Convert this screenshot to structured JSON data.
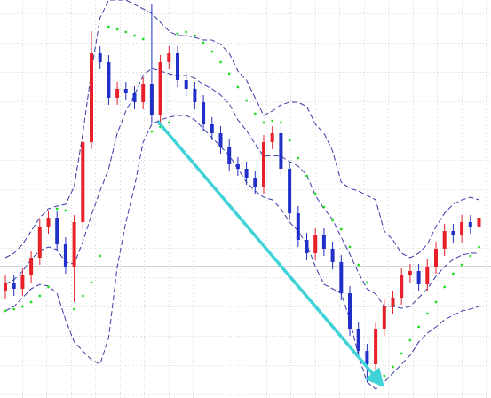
{
  "chart_data": {
    "type": "candlestick",
    "ylim": [
      0,
      448
    ],
    "up_color": "#e8202a",
    "down_color": "#1f2fc8",
    "open": [
      120,
      130,
      123,
      138,
      158,
      193,
      203,
      173,
      148,
      198,
      288,
      388,
      378,
      338,
      348,
      343,
      333,
      353,
      318,
      378,
      388,
      358,
      348,
      333,
      308,
      298,
      283,
      263,
      258,
      248,
      238,
      288,
      298,
      258,
      208,
      178,
      163,
      183,
      168,
      153,
      118,
      78,
      53,
      38,
      78,
      103,
      113,
      138,
      143,
      128,
      148,
      168,
      188,
      183,
      198,
      193
    ],
    "high": [
      138,
      138,
      146,
      166,
      201,
      211,
      211,
      181,
      206,
      296,
      413,
      396,
      386,
      356,
      356,
      351,
      361,
      443,
      386,
      396,
      396,
      366,
      356,
      341,
      316,
      306,
      291,
      271,
      266,
      256,
      296,
      306,
      306,
      266,
      216,
      186,
      191,
      191,
      176,
      161,
      126,
      86,
      61,
      86,
      111,
      121,
      146,
      151,
      151,
      156,
      176,
      196,
      196,
      206,
      206,
      211
    ],
    "low": [
      112,
      115,
      115,
      130,
      150,
      185,
      165,
      140,
      108,
      190,
      280,
      370,
      330,
      330,
      335,
      325,
      325,
      310,
      310,
      370,
      350,
      340,
      325,
      300,
      290,
      275,
      255,
      250,
      240,
      230,
      230,
      280,
      250,
      200,
      170,
      155,
      155,
      160,
      145,
      110,
      70,
      45,
      18,
      30,
      70,
      95,
      105,
      130,
      120,
      120,
      140,
      160,
      175,
      175,
      185,
      185
    ],
    "close": [
      130,
      123,
      138,
      158,
      193,
      203,
      173,
      148,
      198,
      288,
      388,
      378,
      338,
      348,
      343,
      333,
      353,
      318,
      378,
      388,
      358,
      348,
      333,
      308,
      298,
      283,
      263,
      258,
      248,
      238,
      288,
      298,
      258,
      208,
      178,
      163,
      183,
      168,
      153,
      118,
      78,
      53,
      38,
      78,
      103,
      113,
      138,
      143,
      128,
      148,
      168,
      188,
      183,
      198,
      193,
      203
    ],
    "overlays": [
      {
        "kind": "line",
        "color": "#3a3aa8",
        "values": [
          158,
          163,
          173,
          188,
          203,
          213,
          216,
          218,
          238,
          298,
          368,
          428,
          448,
          448,
          448,
          443,
          438,
          433,
          423,
          413,
          408,
          408,
          406,
          403,
          403,
          398,
          388,
          368,
          358,
          338,
          318,
          323,
          330,
          333,
          333,
          328,
          308,
          298,
          278,
          243,
          236,
          233,
          228,
          223,
          188,
          178,
          163,
          158,
          163,
          173,
          193,
          208,
          218,
          223,
          226,
          223
        ]
      },
      {
        "kind": "line",
        "color": "#3a3aa8",
        "values": [
          128,
          133,
          143,
          156,
          166,
          170,
          167,
          153,
          151,
          176,
          206,
          233,
          258,
          298,
          323,
          341,
          363,
          371,
          368,
          365,
          363,
          363,
          360,
          353,
          348,
          341,
          331,
          313,
          301,
          286,
          272,
          273,
          272,
          266,
          261,
          251,
          228,
          213,
          201,
          181,
          162,
          141,
          123,
          117,
          103,
          103,
          101,
          103,
          113,
          123,
          137,
          148,
          156,
          161,
          163,
          163
        ]
      },
      {
        "kind": "line",
        "color": "#3a3aa8",
        "values": [
          98,
          103,
          113,
          123,
          128,
          126,
          118,
          88,
          63,
          53,
          43,
          38,
          68,
          148,
          198,
          238,
          288,
          308,
          313,
          316,
          318,
          318,
          313,
          303,
          293,
          283,
          273,
          258,
          243,
          233,
          226,
          223,
          213,
          198,
          188,
          173,
          148,
          128,
          123,
          118,
          88,
          48,
          18,
          10,
          18,
          28,
          38,
          48,
          63,
          73,
          80,
          88,
          93,
          98,
          100,
          103
        ]
      },
      {
        "kind": "dots",
        "color": "#22dd22",
        "values": [
          98,
          100,
          103,
          108,
          115,
          125,
          213,
          211,
          100,
          115,
          130,
          160,
          418,
          415,
          412,
          408,
          404,
          300,
          305,
          310,
          410,
          412,
          408,
          400,
          390,
          378,
          365,
          350,
          335,
          320,
          310,
          312,
          310,
          290,
          270,
          250,
          230,
          215,
          200,
          190,
          170,
          150,
          130,
          20,
          25,
          35,
          50,
          65,
          80,
          95,
          108,
          125,
          140,
          150,
          160,
          170
        ]
      }
    ]
  }
}
